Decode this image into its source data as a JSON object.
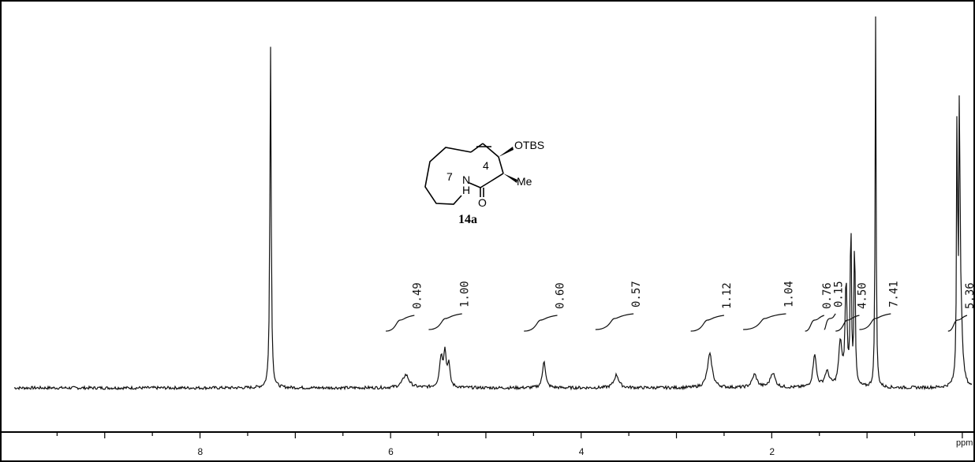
{
  "chart_data": {
    "type": "line",
    "xlabel": "ppm",
    "xlim": [
      9.95,
      -0.1
    ],
    "ylim": [
      0,
      1.0
    ],
    "ticks": [
      {
        "value": 8,
        "label": "8"
      },
      {
        "value": 6,
        "label": "6"
      },
      {
        "value": 4,
        "label": "4"
      },
      {
        "value": 2,
        "label": "2"
      }
    ],
    "peaks": [
      {
        "ppm": 7.26,
        "height": 0.92,
        "width": 0.008
      },
      {
        "ppm": 5.84,
        "height": 0.035,
        "width": 0.04
      },
      {
        "ppm": 5.47,
        "height": 0.08,
        "width": 0.02
      },
      {
        "ppm": 5.43,
        "height": 0.09,
        "width": 0.015
      },
      {
        "ppm": 5.39,
        "height": 0.06,
        "width": 0.015
      },
      {
        "ppm": 4.39,
        "height": 0.075,
        "width": 0.018
      },
      {
        "ppm": 3.63,
        "height": 0.035,
        "width": 0.03
      },
      {
        "ppm": 2.65,
        "height": 0.09,
        "width": 0.03
      },
      {
        "ppm": 2.18,
        "height": 0.035,
        "width": 0.03
      },
      {
        "ppm": 1.99,
        "height": 0.04,
        "width": 0.03
      },
      {
        "ppm": 1.55,
        "height": 0.09,
        "width": 0.02
      },
      {
        "ppm": 1.42,
        "height": 0.04,
        "width": 0.03
      },
      {
        "ppm": 1.28,
        "height": 0.12,
        "width": 0.02
      },
      {
        "ppm": 1.22,
        "height": 0.28,
        "width": 0.012
      },
      {
        "ppm": 1.17,
        "height": 0.47,
        "width": 0.007
      },
      {
        "ppm": 1.13,
        "height": 0.43,
        "width": 0.007
      },
      {
        "ppm": 0.91,
        "height": 1.0,
        "width": 0.006
      },
      {
        "ppm": 0.055,
        "height": 0.76,
        "width": 0.006
      },
      {
        "ppm": 0.03,
        "height": 0.74,
        "width": 0.006
      },
      {
        "ppm": 0.015,
        "height": 0.18,
        "width": 0.02
      }
    ],
    "integrals": [
      {
        "label": "0.49",
        "from": 6.05,
        "to": 5.75
      },
      {
        "label": "1.00",
        "from": 5.6,
        "to": 5.25
      },
      {
        "label": "0.60",
        "from": 4.6,
        "to": 4.25
      },
      {
        "label": "0.57",
        "from": 3.85,
        "to": 3.45
      },
      {
        "label": "1.12",
        "from": 2.85,
        "to": 2.5
      },
      {
        "label": "1.04",
        "from": 2.3,
        "to": 1.85
      },
      {
        "label": "0.76",
        "from": 1.65,
        "to": 1.45
      },
      {
        "label": "0.15",
        "from": 1.45,
        "to": 1.33
      },
      {
        "label": "4.50",
        "from": 1.33,
        "to": 1.08
      },
      {
        "label": "7.41",
        "from": 1.08,
        "to": 0.75
      },
      {
        "label": "5.36",
        "from": 0.15,
        "to": -0.05
      }
    ]
  },
  "axis": {
    "unit_label": "ppm"
  },
  "molecule": {
    "substituent_top": "OTBS",
    "substituent_right": "Me",
    "nh": "N",
    "h": "H",
    "oxygen": "O",
    "ring_number_7": "7",
    "ring_number_4": "4",
    "compound_label": "14a"
  }
}
